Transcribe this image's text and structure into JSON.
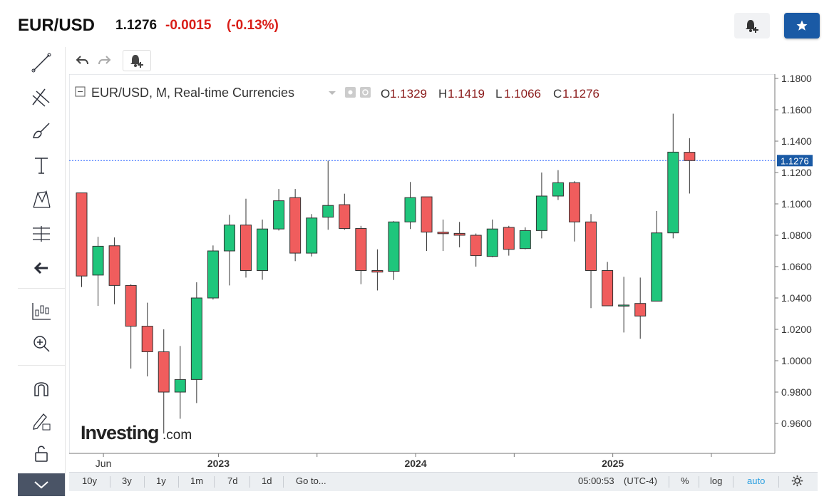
{
  "header": {
    "symbol": "EUR/USD",
    "last": "1.1276",
    "change": "-0.0015",
    "change_pct": "(-0.13%)",
    "alert_icon": "bell-plus-icon",
    "star_icon": "star-icon"
  },
  "left_tools": [
    {
      "icon": "trend-line-icon"
    },
    {
      "icon": "fib-tools-icon"
    },
    {
      "icon": "brush-icon"
    },
    {
      "icon": "text-icon"
    },
    {
      "icon": "pattern-icon"
    },
    {
      "icon": "measure-icon"
    },
    {
      "icon": "arrow-left-icon"
    },
    {
      "icon": "indicators-icon"
    },
    {
      "icon": "zoom-icon"
    },
    {
      "icon": "magnet-icon"
    },
    {
      "icon": "lock-drawing-icon"
    },
    {
      "icon": "unlock-icon"
    },
    {
      "icon": "chevron-down-icon"
    }
  ],
  "chart_toolbar": {
    "undo_icon": "undo-icon",
    "redo_icon": "redo-icon",
    "alert_icon": "bell-plus-icon"
  },
  "legend": {
    "title": "EUR/USD, M, Real-time Currencies",
    "o_label": "O",
    "o": "1.1329",
    "h_label": "H",
    "h": "1.1419",
    "l_label": "L",
    "l": "1.1066",
    "c_label": "C",
    "c": "1.1276"
  },
  "watermark": {
    "brand": "Investing",
    "suffix": ".com"
  },
  "colors": {
    "up": "#1fc67c",
    "down": "#f05d5d",
    "wick": "#333333",
    "price_line": "#2962ff",
    "price_label_bg": "#1a5aa5",
    "negative": "#d91e18"
  },
  "chart_data": {
    "type": "candlestick",
    "interval": "Monthly",
    "ylim": [
      0.94,
      1.18
    ],
    "y_ticks": [
      "1.1800",
      "1.1600",
      "1.1400",
      "1.1200",
      "1.1000",
      "1.0800",
      "1.0600",
      "1.0400",
      "1.0200",
      "1.0000",
      "0.9800",
      "0.9600"
    ],
    "x_labels": [
      "Jun",
      "2023",
      "2024",
      "2025"
    ],
    "current_price": "1.1276",
    "candles": [
      {
        "o": 1.107,
        "h": 1.107,
        "l": 1.047,
        "c": 1.054
      },
      {
        "o": 1.0546,
        "h": 1.079,
        "l": 1.035,
        "c": 1.073
      },
      {
        "o": 1.0733,
        "h": 1.0786,
        "l": 1.036,
        "c": 1.048
      },
      {
        "o": 1.048,
        "h": 1.0487,
        "l": 0.995,
        "c": 1.022
      },
      {
        "o": 1.022,
        "h": 1.037,
        "l": 0.99,
        "c": 1.0057
      },
      {
        "o": 1.0057,
        "h": 1.02,
        "l": 0.9536,
        "c": 0.98
      },
      {
        "o": 0.98,
        "h": 1.0094,
        "l": 0.963,
        "c": 0.988
      },
      {
        "o": 0.988,
        "h": 1.05,
        "l": 0.973,
        "c": 1.04
      },
      {
        "o": 1.04,
        "h": 1.0735,
        "l": 1.039,
        "c": 1.07
      },
      {
        "o": 1.07,
        "h": 1.093,
        "l": 1.048,
        "c": 1.0865
      },
      {
        "o": 1.0865,
        "h": 1.1033,
        "l": 1.053,
        "c": 1.0575
      },
      {
        "o": 1.0575,
        "h": 1.09,
        "l": 1.0516,
        "c": 1.084
      },
      {
        "o": 1.084,
        "h": 1.1095,
        "l": 1.083,
        "c": 1.102
      },
      {
        "o": 1.104,
        "h": 1.1095,
        "l": 1.0635,
        "c": 1.0686
      },
      {
        "o": 1.0686,
        "h": 1.0935,
        "l": 1.0665,
        "c": 1.091
      },
      {
        "o": 1.0915,
        "h": 1.1275,
        "l": 1.0835,
        "c": 1.099
      },
      {
        "o": 1.0995,
        "h": 1.1065,
        "l": 1.0835,
        "c": 1.0843
      },
      {
        "o": 1.0843,
        "h": 1.086,
        "l": 1.0488,
        "c": 1.0575
      },
      {
        "o": 1.0575,
        "h": 1.071,
        "l": 1.0448,
        "c": 1.0565
      },
      {
        "o": 1.057,
        "h": 1.089,
        "l": 1.0515,
        "c": 1.0885
      },
      {
        "o": 1.0885,
        "h": 1.114,
        "l": 1.084,
        "c": 1.104
      },
      {
        "o": 1.1045,
        "h": 1.1045,
        "l": 1.07,
        "c": 1.082
      },
      {
        "o": 1.082,
        "h": 1.09,
        "l": 1.07,
        "c": 1.081
      },
      {
        "o": 1.0812,
        "h": 1.0885,
        "l": 1.0723,
        "c": 1.08
      },
      {
        "o": 1.08,
        "h": 1.0811,
        "l": 1.06,
        "c": 1.067
      },
      {
        "o": 1.0665,
        "h": 1.09,
        "l": 1.066,
        "c": 1.084
      },
      {
        "o": 1.085,
        "h": 1.086,
        "l": 1.067,
        "c": 1.071
      },
      {
        "o": 1.0715,
        "h": 1.085,
        "l": 1.071,
        "c": 1.083
      },
      {
        "o": 1.083,
        "h": 1.12,
        "l": 1.078,
        "c": 1.105
      },
      {
        "o": 1.105,
        "h": 1.1215,
        "l": 1.1025,
        "c": 1.1135
      },
      {
        "o": 1.1135,
        "h": 1.1145,
        "l": 1.076,
        "c": 1.0885
      },
      {
        "o": 1.0885,
        "h": 1.0935,
        "l": 1.0335,
        "c": 1.0575
      },
      {
        "o": 1.0575,
        "h": 1.063,
        "l": 1.035,
        "c": 1.035
      },
      {
        "o": 1.0355,
        "h": 1.0535,
        "l": 1.018,
        "c": 1.0355
      },
      {
        "o": 1.0365,
        "h": 1.053,
        "l": 1.014,
        "c": 1.0285
      },
      {
        "o": 1.038,
        "h": 1.0955,
        "l": 1.038,
        "c": 1.0815
      },
      {
        "o": 1.0815,
        "h": 1.1575,
        "l": 1.078,
        "c": 1.133
      },
      {
        "o": 1.1329,
        "h": 1.1419,
        "l": 1.1066,
        "c": 1.1276
      }
    ]
  },
  "bottom_bar": {
    "ranges": [
      "10y",
      "3y",
      "1y",
      "1m",
      "7d",
      "1d"
    ],
    "goto": "Go to...",
    "clock": "05:00:53",
    "tz": "(UTC-4)",
    "pct": "%",
    "log": "log",
    "auto": "auto",
    "settings_icon": "gear-icon"
  }
}
